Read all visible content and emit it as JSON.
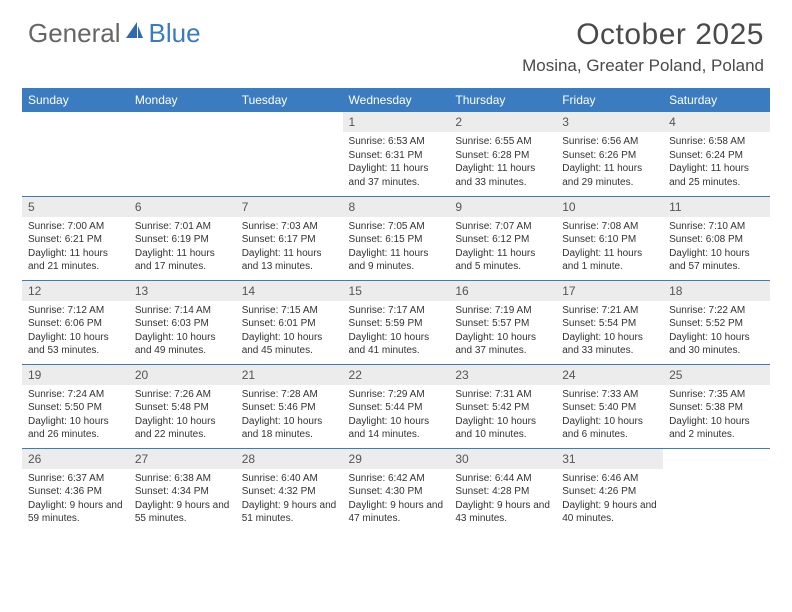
{
  "logo": {
    "part1": "General",
    "part2": "Blue"
  },
  "title": "October 2025",
  "location": "Mosina, Greater Poland, Poland",
  "colors": {
    "header_bg": "#3b7bbf",
    "header_text": "#ffffff",
    "daynum_bg": "#ececec",
    "row_border": "#3b7bbf",
    "title_color": "#4a4a4a"
  },
  "typography": {
    "title_fontsize": 30,
    "location_fontsize": 17,
    "dayheader_fontsize": 12,
    "daynum_fontsize": 12,
    "body_fontsize": 10
  },
  "day_headers": [
    "Sunday",
    "Monday",
    "Tuesday",
    "Wednesday",
    "Thursday",
    "Friday",
    "Saturday"
  ],
  "weeks": [
    [
      {
        "n": "",
        "lines": []
      },
      {
        "n": "",
        "lines": []
      },
      {
        "n": "",
        "lines": []
      },
      {
        "n": "1",
        "lines": [
          "Sunrise: 6:53 AM",
          "Sunset: 6:31 PM",
          "Daylight: 11 hours and 37 minutes."
        ]
      },
      {
        "n": "2",
        "lines": [
          "Sunrise: 6:55 AM",
          "Sunset: 6:28 PM",
          "Daylight: 11 hours and 33 minutes."
        ]
      },
      {
        "n": "3",
        "lines": [
          "Sunrise: 6:56 AM",
          "Sunset: 6:26 PM",
          "Daylight: 11 hours and 29 minutes."
        ]
      },
      {
        "n": "4",
        "lines": [
          "Sunrise: 6:58 AM",
          "Sunset: 6:24 PM",
          "Daylight: 11 hours and 25 minutes."
        ]
      }
    ],
    [
      {
        "n": "5",
        "lines": [
          "Sunrise: 7:00 AM",
          "Sunset: 6:21 PM",
          "Daylight: 11 hours and 21 minutes."
        ]
      },
      {
        "n": "6",
        "lines": [
          "Sunrise: 7:01 AM",
          "Sunset: 6:19 PM",
          "Daylight: 11 hours and 17 minutes."
        ]
      },
      {
        "n": "7",
        "lines": [
          "Sunrise: 7:03 AM",
          "Sunset: 6:17 PM",
          "Daylight: 11 hours and 13 minutes."
        ]
      },
      {
        "n": "8",
        "lines": [
          "Sunrise: 7:05 AM",
          "Sunset: 6:15 PM",
          "Daylight: 11 hours and 9 minutes."
        ]
      },
      {
        "n": "9",
        "lines": [
          "Sunrise: 7:07 AM",
          "Sunset: 6:12 PM",
          "Daylight: 11 hours and 5 minutes."
        ]
      },
      {
        "n": "10",
        "lines": [
          "Sunrise: 7:08 AM",
          "Sunset: 6:10 PM",
          "Daylight: 11 hours and 1 minute."
        ]
      },
      {
        "n": "11",
        "lines": [
          "Sunrise: 7:10 AM",
          "Sunset: 6:08 PM",
          "Daylight: 10 hours and 57 minutes."
        ]
      }
    ],
    [
      {
        "n": "12",
        "lines": [
          "Sunrise: 7:12 AM",
          "Sunset: 6:06 PM",
          "Daylight: 10 hours and 53 minutes."
        ]
      },
      {
        "n": "13",
        "lines": [
          "Sunrise: 7:14 AM",
          "Sunset: 6:03 PM",
          "Daylight: 10 hours and 49 minutes."
        ]
      },
      {
        "n": "14",
        "lines": [
          "Sunrise: 7:15 AM",
          "Sunset: 6:01 PM",
          "Daylight: 10 hours and 45 minutes."
        ]
      },
      {
        "n": "15",
        "lines": [
          "Sunrise: 7:17 AM",
          "Sunset: 5:59 PM",
          "Daylight: 10 hours and 41 minutes."
        ]
      },
      {
        "n": "16",
        "lines": [
          "Sunrise: 7:19 AM",
          "Sunset: 5:57 PM",
          "Daylight: 10 hours and 37 minutes."
        ]
      },
      {
        "n": "17",
        "lines": [
          "Sunrise: 7:21 AM",
          "Sunset: 5:54 PM",
          "Daylight: 10 hours and 33 minutes."
        ]
      },
      {
        "n": "18",
        "lines": [
          "Sunrise: 7:22 AM",
          "Sunset: 5:52 PM",
          "Daylight: 10 hours and 30 minutes."
        ]
      }
    ],
    [
      {
        "n": "19",
        "lines": [
          "Sunrise: 7:24 AM",
          "Sunset: 5:50 PM",
          "Daylight: 10 hours and 26 minutes."
        ]
      },
      {
        "n": "20",
        "lines": [
          "Sunrise: 7:26 AM",
          "Sunset: 5:48 PM",
          "Daylight: 10 hours and 22 minutes."
        ]
      },
      {
        "n": "21",
        "lines": [
          "Sunrise: 7:28 AM",
          "Sunset: 5:46 PM",
          "Daylight: 10 hours and 18 minutes."
        ]
      },
      {
        "n": "22",
        "lines": [
          "Sunrise: 7:29 AM",
          "Sunset: 5:44 PM",
          "Daylight: 10 hours and 14 minutes."
        ]
      },
      {
        "n": "23",
        "lines": [
          "Sunrise: 7:31 AM",
          "Sunset: 5:42 PM",
          "Daylight: 10 hours and 10 minutes."
        ]
      },
      {
        "n": "24",
        "lines": [
          "Sunrise: 7:33 AM",
          "Sunset: 5:40 PM",
          "Daylight: 10 hours and 6 minutes."
        ]
      },
      {
        "n": "25",
        "lines": [
          "Sunrise: 7:35 AM",
          "Sunset: 5:38 PM",
          "Daylight: 10 hours and 2 minutes."
        ]
      }
    ],
    [
      {
        "n": "26",
        "lines": [
          "Sunrise: 6:37 AM",
          "Sunset: 4:36 PM",
          "Daylight: 9 hours and 59 minutes."
        ]
      },
      {
        "n": "27",
        "lines": [
          "Sunrise: 6:38 AM",
          "Sunset: 4:34 PM",
          "Daylight: 9 hours and 55 minutes."
        ]
      },
      {
        "n": "28",
        "lines": [
          "Sunrise: 6:40 AM",
          "Sunset: 4:32 PM",
          "Daylight: 9 hours and 51 minutes."
        ]
      },
      {
        "n": "29",
        "lines": [
          "Sunrise: 6:42 AM",
          "Sunset: 4:30 PM",
          "Daylight: 9 hours and 47 minutes."
        ]
      },
      {
        "n": "30",
        "lines": [
          "Sunrise: 6:44 AM",
          "Sunset: 4:28 PM",
          "Daylight: 9 hours and 43 minutes."
        ]
      },
      {
        "n": "31",
        "lines": [
          "Sunrise: 6:46 AM",
          "Sunset: 4:26 PM",
          "Daylight: 9 hours and 40 minutes."
        ]
      },
      {
        "n": "",
        "lines": []
      }
    ]
  ]
}
